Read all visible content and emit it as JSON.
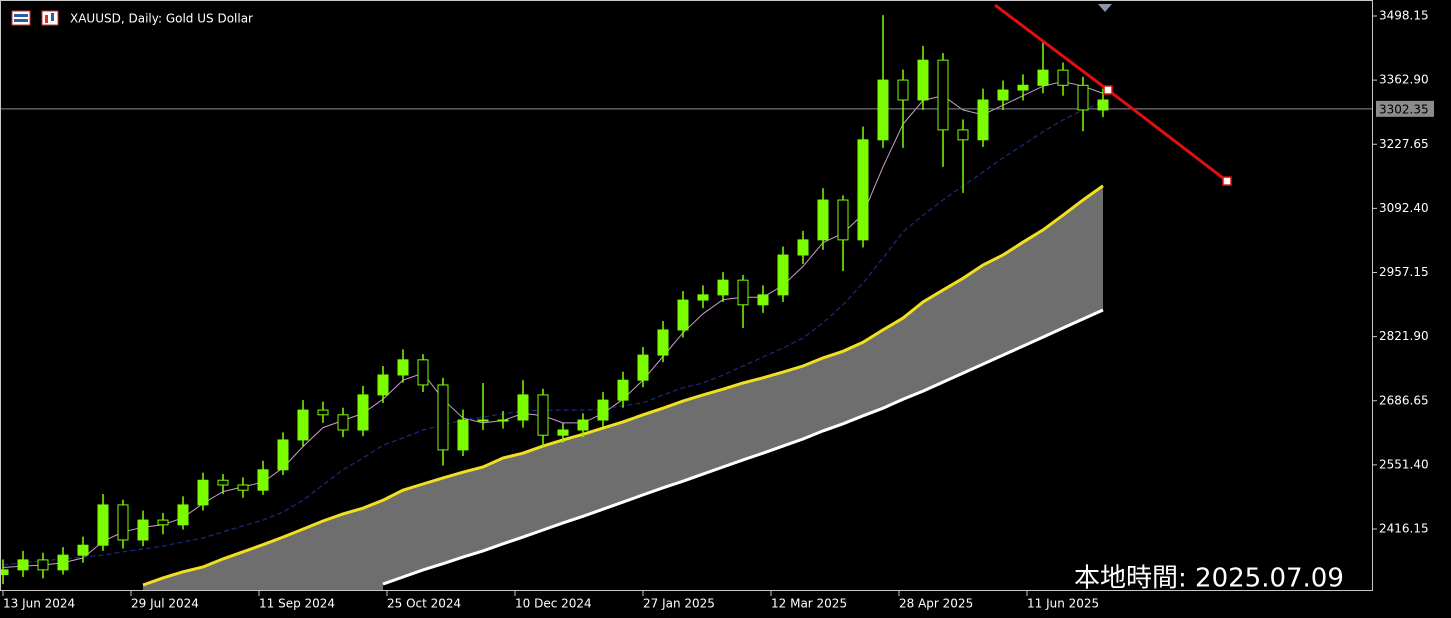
{
  "chart_data": {
    "type": "candlestick",
    "title": "XAUUSD, Daily:  Gold US Dollar",
    "local_time": "本地時間: 2025.07.09",
    "x": [
      0,
      5,
      10,
      15,
      20,
      25,
      30,
      35,
      40,
      45,
      50,
      55,
      60,
      65,
      70,
      75,
      80,
      85,
      90,
      95,
      100,
      105,
      110,
      115,
      120,
      125,
      130,
      135,
      140,
      145,
      150,
      155,
      160,
      165,
      170,
      175,
      180,
      185,
      190,
      195,
      200,
      205,
      210,
      215,
      220,
      225,
      230,
      235,
      240,
      245,
      250,
      255,
      260,
      265,
      270,
      275
    ],
    "open": [
      2320,
      2330,
      2351,
      2330,
      2361,
      2382,
      2467,
      2393,
      2435,
      2425,
      2467,
      2519,
      2509,
      2498,
      2541,
      2604,
      2667,
      2657,
      2625,
      2699,
      2741,
      2773,
      2720,
      2583,
      2646,
      2646,
      2646,
      2699,
      2614,
      2625,
      2646,
      2688,
      2730,
      2783,
      2836,
      2899,
      2910,
      2941,
      2889,
      2910,
      2994,
      3026,
      3110,
      3026,
      3237,
      3363,
      3321,
      3405,
      3258,
      3237,
      3321,
      3342,
      3352,
      3384,
      3352,
      3300
    ],
    "high": [
      2352,
      2370,
      2366,
      2378,
      2400,
      2490,
      2478,
      2455,
      2450,
      2485,
      2535,
      2532,
      2525,
      2560,
      2620,
      2688,
      2685,
      2672,
      2718,
      2760,
      2795,
      2785,
      2735,
      2668,
      2724,
      2665,
      2730,
      2712,
      2640,
      2660,
      2705,
      2748,
      2800,
      2855,
      2918,
      2930,
      2958,
      2952,
      2930,
      3012,
      3045,
      3135,
      3120,
      3265,
      3500,
      3385,
      3435,
      3420,
      3280,
      3345,
      3362,
      3375,
      3448,
      3400,
      3370,
      3345
    ],
    "low": [
      2300,
      2315,
      2312,
      2320,
      2345,
      2370,
      2375,
      2380,
      2405,
      2415,
      2455,
      2490,
      2482,
      2488,
      2530,
      2590,
      2640,
      2610,
      2612,
      2682,
      2725,
      2705,
      2550,
      2570,
      2625,
      2628,
      2630,
      2590,
      2598,
      2610,
      2632,
      2672,
      2715,
      2768,
      2820,
      2882,
      2895,
      2840,
      2872,
      2895,
      2975,
      3005,
      2960,
      3010,
      3220,
      3220,
      3300,
      3180,
      3125,
      3222,
      3300,
      3320,
      3335,
      3330,
      3255,
      3285
    ],
    "close": [
      2330,
      2351,
      2330,
      2361,
      2382,
      2467,
      2393,
      2435,
      2425,
      2467,
      2519,
      2509,
      2498,
      2541,
      2604,
      2667,
      2657,
      2625,
      2699,
      2741,
      2773,
      2720,
      2583,
      2646,
      2646,
      2646,
      2699,
      2614,
      2625,
      2646,
      2688,
      2730,
      2783,
      2836,
      2899,
      2910,
      2941,
      2889,
      2910,
      2994,
      3026,
      3110,
      3026,
      3237,
      3363,
      3321,
      3405,
      3258,
      3237,
      3321,
      3342,
      3352,
      3384,
      3352,
      3300,
      3321
    ],
    "up_color": "#7cfc00",
    "down_color": "#7cfc00",
    "lines": [
      {
        "color": "#c9a0c9",
        "width": 1,
        "dash": "",
        "values": [
          2335,
          2338,
          2340,
          2345,
          2355,
          2390,
          2410,
          2420,
          2425,
          2440,
          2470,
          2495,
          2505,
          2515,
          2545,
          2590,
          2630,
          2645,
          2660,
          2690,
          2730,
          2745,
          2690,
          2650,
          2640,
          2645,
          2660,
          2655,
          2640,
          2640,
          2660,
          2690,
          2730,
          2780,
          2830,
          2870,
          2900,
          2905,
          2905,
          2930,
          2970,
          3020,
          3040,
          3080,
          3180,
          3270,
          3320,
          3330,
          3300,
          3290,
          3310,
          3330,
          3350,
          3360,
          3350,
          3335
        ]
      },
      {
        "color": "#1c2a80",
        "width": 1.2,
        "dash": "5 3",
        "values": [
          2340,
          2345,
          2349,
          2353,
          2357,
          2361,
          2368,
          2374,
          2380,
          2389,
          2397,
          2410,
          2423,
          2435,
          2452,
          2477,
          2509,
          2541,
          2566,
          2593,
          2608,
          2625,
          2635,
          2646,
          2652,
          2659,
          2665,
          2667,
          2667,
          2667,
          2669,
          2676,
          2682,
          2699,
          2714,
          2724,
          2741,
          2760,
          2779,
          2798,
          2819,
          2851,
          2889,
          2935,
          2988,
          3043,
          3078,
          3110,
          3140,
          3169,
          3199,
          3226,
          3254,
          3279,
          3300,
          3317
        ]
      },
      {
        "color": "#f0e020",
        "width": 3,
        "dash": "",
        "values": [
          null,
          null,
          null,
          null,
          null,
          null,
          null,
          2298,
          2313,
          2326,
          2336,
          2353,
          2368,
          2383,
          2399,
          2416,
          2433,
          2448,
          2460,
          2477,
          2498,
          2511,
          2524,
          2536,
          2547,
          2566,
          2576,
          2591,
          2604,
          2616,
          2629,
          2642,
          2657,
          2671,
          2686,
          2699,
          2711,
          2724,
          2735,
          2747,
          2760,
          2777,
          2791,
          2810,
          2836,
          2861,
          2895,
          2920,
          2945,
          2973,
          2994,
          3021,
          3047,
          3078,
          3110,
          3140
        ]
      },
      {
        "color": "#ffffff",
        "width": 3,
        "dash": "",
        "values": [
          null,
          null,
          null,
          null,
          null,
          null,
          null,
          null,
          null,
          null,
          null,
          null,
          null,
          null,
          null,
          null,
          null,
          null,
          null,
          2300,
          2315,
          2330,
          2343,
          2357,
          2370,
          2385,
          2399,
          2414,
          2429,
          2443,
          2458,
          2473,
          2488,
          2503,
          2517,
          2532,
          2547,
          2562,
          2576,
          2591,
          2606,
          2623,
          2638,
          2655,
          2671,
          2690,
          2707,
          2726,
          2745,
          2764,
          2783,
          2802,
          2821,
          2840,
          2859,
          2878
        ]
      }
    ],
    "fill": {
      "between": [
        2,
        3
      ],
      "color": "#6e6e6e"
    },
    "trendline": {
      "color": "#e01010",
      "x": [
        248,
        276.25,
        306
      ],
      "values": [
        3521.3,
        3342.1,
        3150
      ]
    },
    "current_price": 3302.35,
    "xlim": [
      -0.75,
      342.5
    ],
    "ylim": [
      2285.4,
      3531.9
    ],
    "xticks": [
      {
        "value": 0,
        "label": "13 Jun 2024"
      },
      {
        "value": 32,
        "label": "29 Jul 2024"
      },
      {
        "value": 64,
        "label": "11 Sep 2024"
      },
      {
        "value": 96,
        "label": "25 Oct 2024"
      },
      {
        "value": 128,
        "label": "10 Dec 2024"
      },
      {
        "value": 160,
        "label": "27 Jan 2025"
      },
      {
        "value": 192,
        "label": "12 Mar 2025"
      },
      {
        "value": 224,
        "label": "28 Apr 2025"
      },
      {
        "value": 256,
        "label": "11 Jun 2025"
      }
    ],
    "yticks": [
      2416.15,
      {
        "value": 2551.4,
        "label": "2551.40"
      },
      2686.65,
      {
        "value": 2821.9,
        "label": "2821.90"
      },
      2957.15,
      {
        "value": 3092.4,
        "label": "3092.40"
      },
      3227.65,
      {
        "value": 3362.9,
        "label": "3362.90"
      },
      3498.15
    ],
    "grid": false
  }
}
